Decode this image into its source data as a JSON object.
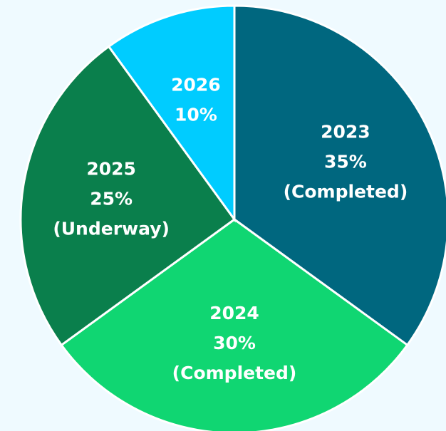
{
  "chart_data": {
    "type": "pie",
    "categories": [
      "2023",
      "2024",
      "2025",
      "2026"
    ],
    "values": [
      35,
      30,
      25,
      10
    ],
    "value_labels": [
      "35%",
      "30%",
      "25%",
      "10%"
    ],
    "statuses": [
      "(Completed)",
      "(Completed)",
      "(Underway)",
      null
    ],
    "colors": [
      "#00677f",
      "#10d672",
      "#0a7f4c",
      "#00ccff"
    ]
  }
}
